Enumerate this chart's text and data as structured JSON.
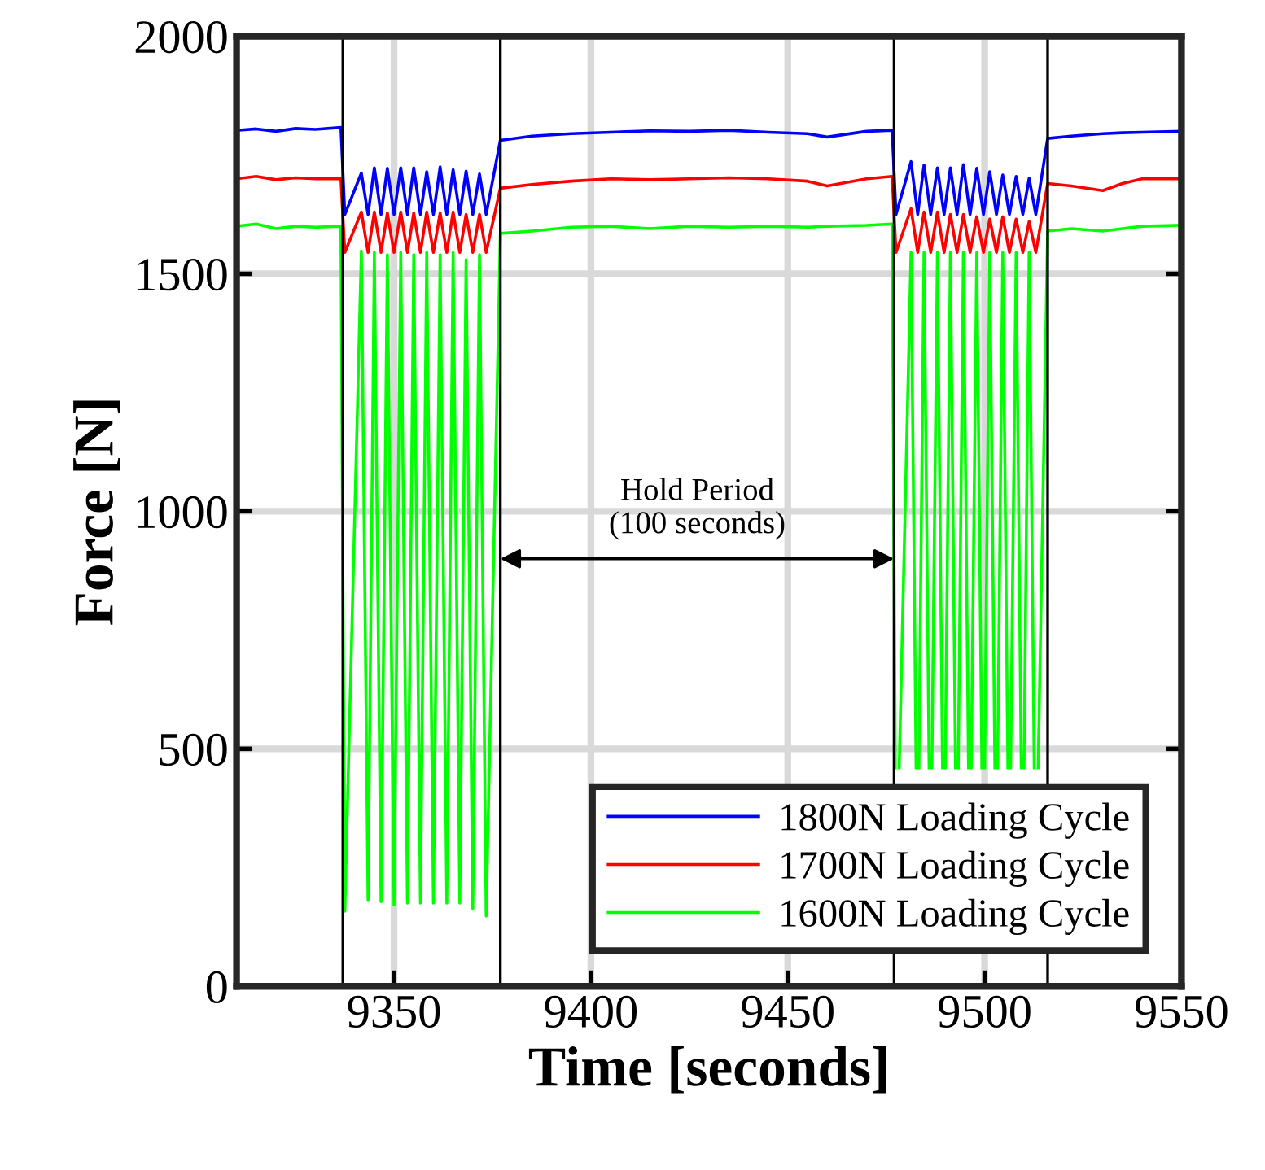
{
  "chart_data": {
    "type": "line",
    "xlabel": "Time [seconds]",
    "ylabel": "Force [N]",
    "x": [
      9310,
      9315,
      9320,
      9325,
      9330,
      9336.5,
      9337.5,
      9341.7,
      9343.4,
      9345.0,
      9346.7,
      9348.3,
      9350.0,
      9351.7,
      9353.4,
      9355.0,
      9356.7,
      9358.3,
      9360.0,
      9361.7,
      9363.4,
      9365.0,
      9366.7,
      9368.3,
      9370.0,
      9371.7,
      9373.4,
      9377,
      9385,
      9395,
      9405,
      9415,
      9425,
      9435,
      9445,
      9455,
      9460,
      9470,
      9476.5,
      9477.5,
      9481.3,
      9483.0,
      9484.6,
      9486.3,
      9488.0,
      9489.7,
      9491.3,
      9493.0,
      9494.6,
      9496.3,
      9498.0,
      9499.7,
      9501.3,
      9503.0,
      9504.6,
      9506.3,
      9508.0,
      9509.7,
      9511.3,
      9513.0,
      9516,
      9522,
      9530,
      9535,
      9540,
      9550
    ],
    "series": [
      {
        "name": "1800N Loading Cycle",
        "color": "#0000ff",
        "values": [
          1802,
          1805,
          1800,
          1806,
          1804,
          1808,
          1625,
          1712,
          1625,
          1723,
          1625,
          1722,
          1625,
          1723,
          1625,
          1723,
          1625,
          1715,
          1625,
          1725,
          1625,
          1719,
          1625,
          1716,
          1625,
          1710,
          1625,
          1781,
          1790,
          1795,
          1798,
          1801,
          1800,
          1802,
          1798,
          1795,
          1788,
          1800,
          1802,
          1625,
          1736,
          1625,
          1729,
          1625,
          1723,
          1625,
          1723,
          1625,
          1730,
          1625,
          1722,
          1625,
          1715,
          1625,
          1708,
          1625,
          1705,
          1625,
          1701,
          1625,
          1785,
          1790,
          1795,
          1797,
          1798,
          1800
        ]
      },
      {
        "name": "1700N Loading Cycle",
        "color": "#ff0000",
        "values": [
          1700,
          1705,
          1698,
          1702,
          1700,
          1700,
          1545,
          1630,
          1545,
          1630,
          1545,
          1628,
          1545,
          1630,
          1545,
          1628,
          1545,
          1630,
          1545,
          1628,
          1545,
          1630,
          1545,
          1625,
          1545,
          1625,
          1545,
          1680,
          1688,
          1695,
          1700,
          1698,
          1700,
          1702,
          1700,
          1695,
          1685,
          1700,
          1705,
          1545,
          1637,
          1545,
          1630,
          1545,
          1630,
          1545,
          1625,
          1545,
          1625,
          1545,
          1620,
          1545,
          1615,
          1545,
          1620,
          1545,
          1615,
          1545,
          1610,
          1545,
          1690,
          1685,
          1675,
          1690,
          1700,
          1700
        ]
      },
      {
        "name": "1600N Loading Cycle",
        "color": "#00ff00",
        "x": [
          9310,
          9315,
          9320,
          9325,
          9330,
          9336.5,
          9337.5,
          9341.7,
          9343.4,
          9345.0,
          9346.7,
          9348.3,
          9350.0,
          9351.7,
          9353.4,
          9355.0,
          9356.7,
          9358.3,
          9360.0,
          9361.7,
          9363.4,
          9365.0,
          9366.7,
          9368.3,
          9370.0,
          9371.7,
          9373.4,
          9377,
          9385,
          9395,
          9405,
          9415,
          9425,
          9435,
          9445,
          9455,
          9460,
          9470,
          9476.5,
          9477.3,
          9477.5,
          9478.3,
          9481.3,
          9482.6,
          9483.0,
          9483.3,
          9484.6,
          9485.9,
          9486.3,
          9486.6,
          9488.0,
          9489.3,
          9489.7,
          9490.0,
          9491.3,
          9492.6,
          9493.0,
          9493.3,
          9494.6,
          9495.9,
          9496.3,
          9496.6,
          9498.0,
          9499.3,
          9499.7,
          9500.0,
          9501.3,
          9502.6,
          9503.0,
          9503.3,
          9504.6,
          9505.9,
          9506.3,
          9506.6,
          9508.0,
          9509.3,
          9509.7,
          9510.0,
          9511.3,
          9512.6,
          9513.0,
          9513.6,
          9516,
          9522,
          9530,
          9535,
          9540,
          9550
        ],
        "values": [
          1600,
          1605,
          1595,
          1600,
          1598,
          1600,
          158,
          1548,
          182,
          1545,
          178,
          1540,
          171,
          1545,
          175,
          1540,
          175,
          1545,
          175,
          1540,
          175,
          1545,
          175,
          1530,
          163,
          1540,
          148,
          1585,
          1590,
          1598,
          1600,
          1595,
          1600,
          1598,
          1600,
          1598,
          1600,
          1602,
          1605,
          460,
          null,
          460,
          1545,
          460,
          null,
          460,
          1545,
          460,
          null,
          460,
          1545,
          460,
          null,
          460,
          1545,
          460,
          null,
          460,
          1545,
          460,
          null,
          460,
          1545,
          460,
          null,
          460,
          1545,
          460,
          null,
          460,
          1545,
          460,
          null,
          460,
          1545,
          460,
          null,
          460,
          1545,
          460,
          null,
          460,
          1590,
          1595,
          1590,
          1595,
          1600,
          1602
        ]
      }
    ],
    "xlim": [
      9310,
      9550
    ],
    "xticks": [
      9350,
      9400,
      9450,
      9500,
      9550
    ],
    "ylim": [
      0,
      2000
    ],
    "yticks": [
      0,
      500,
      1000,
      1500,
      2000
    ],
    "ref_lines": [
      {
        "axis": "x",
        "value": 9337,
        "color": "#000000"
      },
      {
        "axis": "x",
        "value": 9377,
        "color": "#000000"
      },
      {
        "axis": "x",
        "value": 9477,
        "color": "#000000"
      },
      {
        "axis": "x",
        "value": 9516,
        "color": "#000000"
      }
    ],
    "annotations": [
      "Hold Period\n(100 seconds)"
    ],
    "grid": true,
    "legend": "bottom right",
    "line_style": "solid",
    "marker": "none"
  }
}
